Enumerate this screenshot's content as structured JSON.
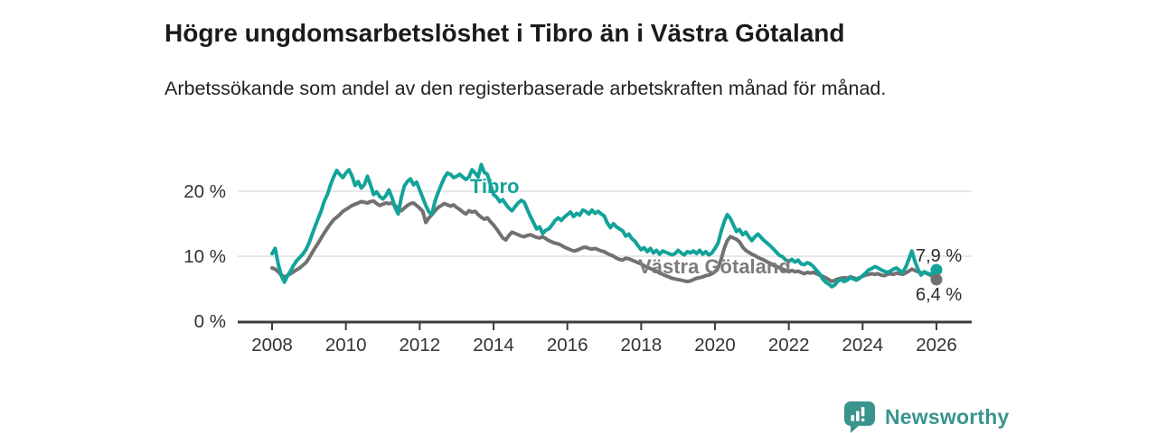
{
  "header": {
    "title": "Högre ungdomsarbetslöshet i Tibro än i Västra Götaland",
    "subtitle": "Arbetssökande som andel av den registerbaserade arbetskraften månad för månad."
  },
  "branding": {
    "logo_text": "Newsworthy",
    "logo_icon": "bar-chart-speech-bubble-icon",
    "logo_color": "#3a948e"
  },
  "colors": {
    "tibro_teal": "#12a39a",
    "vastra_gray": "#717171",
    "vastra_label_gray": "#7b7b7b",
    "grid": "#e0e0e0",
    "axis": "#3d3d3d",
    "axis_text": "#333333",
    "value_label_text": "#2b2b2b"
  },
  "chart_data": {
    "type": "line",
    "title": "Högre ungdomsarbetslöshet i Tibro än i Västra Götaland",
    "subtitle": "Arbetssökande som andel av den registerbaserade arbetskraften månad för månad.",
    "unit": "%",
    "grid": "horizontal-only",
    "x_start_year": 2008,
    "points_per_year": 12,
    "x_axis": {
      "ticks": [
        2008,
        2010,
        2012,
        2014,
        2016,
        2018,
        2020,
        2022,
        2024,
        2026
      ]
    },
    "y_axis": {
      "ticks": [
        0,
        10,
        20
      ],
      "tick_suffix": " %",
      "range": [
        0,
        25
      ]
    },
    "series": [
      {
        "name": "Tibro",
        "color": "#12a39a",
        "end_value": 7.9,
        "end_label": "7,9 %",
        "inline_label": {
          "text": "Tibro",
          "x_year": 2013.36,
          "y_value": 20.7
        },
        "values": [
          10.4,
          11.2,
          8.8,
          7.0,
          6.0,
          7.0,
          7.7,
          8.6,
          9.3,
          9.8,
          10.3,
          11.0,
          12.0,
          13.3,
          14.6,
          15.8,
          17.0,
          18.5,
          19.5,
          21.0,
          22.2,
          23.2,
          22.6,
          22.1,
          22.8,
          23.3,
          22.3,
          20.9,
          21.5,
          20.5,
          21.0,
          22.3,
          21.0,
          19.5,
          19.9,
          19.2,
          18.8,
          19.3,
          20.2,
          19.0,
          17.5,
          16.5,
          19.0,
          20.8,
          21.5,
          21.9,
          21.0,
          21.4,
          20.2,
          19.0,
          17.8,
          16.8,
          16.5,
          18.5,
          19.8,
          21.0,
          22.1,
          22.8,
          22.6,
          22.1,
          22.3,
          22.6,
          22.2,
          21.8,
          22.2,
          23.3,
          22.8,
          22.2,
          24.1,
          22.9,
          22.6,
          21.0,
          19.5,
          19.1,
          18.4,
          18.7,
          18.0,
          17.4,
          17.0,
          17.6,
          18.2,
          18.6,
          18.3,
          17.2,
          16.1,
          15.2,
          14.2,
          14.5,
          13.5,
          14.0,
          14.2,
          14.8,
          15.5,
          15.9,
          15.5,
          16.0,
          16.4,
          16.8,
          16.1,
          16.6,
          16.3,
          17.1,
          16.9,
          16.5,
          17.1,
          16.6,
          16.9,
          16.5,
          16.2,
          15.1,
          14.4,
          15.0,
          14.5,
          14.2,
          13.9,
          13.1,
          13.4,
          12.7,
          12.3,
          11.6,
          11.0,
          11.3,
          10.7,
          11.2,
          10.5,
          10.9,
          10.3,
          10.8,
          10.6,
          10.4,
          10.2,
          10.4,
          10.9,
          10.5,
          10.2,
          10.7,
          10.5,
          10.8,
          10.4,
          10.9,
          10.3,
          10.7,
          10.2,
          10.5,
          11.2,
          12.0,
          13.8,
          15.3,
          16.4,
          15.8,
          14.8,
          13.8,
          14.1,
          13.3,
          13.7,
          13.0,
          12.4,
          13.0,
          13.4,
          12.9,
          12.4,
          12.0,
          11.6,
          11.1,
          10.6,
          10.1,
          9.9,
          9.4,
          9.2,
          9.5,
          9.1,
          9.4,
          8.8,
          8.7,
          9.0,
          8.8,
          8.4,
          7.8,
          7.3,
          6.5,
          6.0,
          5.7,
          5.3,
          5.6,
          6.2,
          6.4,
          6.1,
          6.3,
          6.7,
          6.5,
          6.3,
          6.6,
          7.0,
          7.4,
          7.9,
          8.1,
          8.4,
          8.2,
          7.9,
          7.7,
          7.5,
          7.7,
          8.0,
          8.2,
          7.8,
          7.5,
          8.3,
          9.5,
          10.8,
          9.2,
          8.0,
          7.1,
          7.6,
          7.4,
          7.2,
          7.5,
          7.9
        ]
      },
      {
        "name": "Västra Götaland",
        "color": "#717171",
        "end_value": 6.4,
        "end_label": "6,4 %",
        "inline_label": {
          "text": "Västra Götaland",
          "x_year": 2017.92,
          "y_value": 8.3
        },
        "values": [
          8.2,
          8.0,
          7.6,
          7.1,
          6.8,
          7.0,
          7.3,
          7.6,
          7.9,
          8.2,
          8.6,
          9.0,
          9.7,
          10.5,
          11.3,
          12.0,
          12.8,
          13.6,
          14.3,
          15.0,
          15.6,
          16.0,
          16.4,
          16.9,
          17.2,
          17.5,
          17.8,
          18.0,
          18.2,
          18.4,
          18.3,
          18.2,
          18.4,
          18.5,
          18.1,
          17.8,
          18.0,
          18.2,
          18.1,
          18.2,
          17.8,
          17.3,
          17.0,
          17.4,
          17.8,
          18.1,
          18.2,
          17.8,
          17.4,
          16.9,
          15.2,
          15.9,
          16.4,
          17.0,
          17.5,
          17.8,
          18.1,
          17.9,
          17.7,
          17.9,
          17.5,
          17.2,
          16.8,
          16.5,
          17.0,
          16.8,
          16.9,
          16.4,
          16.0,
          15.7,
          15.9,
          15.3,
          14.8,
          14.2,
          13.5,
          12.8,
          12.5,
          13.2,
          13.7,
          13.5,
          13.3,
          13.1,
          13.0,
          13.2,
          13.3,
          13.1,
          12.9,
          12.8,
          13.0,
          12.7,
          12.4,
          12.2,
          12.0,
          11.9,
          11.7,
          11.4,
          11.2,
          11.0,
          10.8,
          10.9,
          11.1,
          11.3,
          11.4,
          11.2,
          11.1,
          11.2,
          11.0,
          10.8,
          10.7,
          10.4,
          10.2,
          10.0,
          9.7,
          9.5,
          9.4,
          9.7,
          9.6,
          9.4,
          9.2,
          9.0,
          8.8,
          8.5,
          8.3,
          8.1,
          7.9,
          7.7,
          7.4,
          7.2,
          7.0,
          6.8,
          6.6,
          6.5,
          6.4,
          6.3,
          6.2,
          6.1,
          6.2,
          6.4,
          6.6,
          6.7,
          6.8,
          7.0,
          7.1,
          7.3,
          7.6,
          8.2,
          9.5,
          11.2,
          12.4,
          13.0,
          12.8,
          12.6,
          12.2,
          11.4,
          10.9,
          10.6,
          10.3,
          10.1,
          9.8,
          9.6,
          9.4,
          9.1,
          8.9,
          8.6,
          8.4,
          8.2,
          8.0,
          7.8,
          7.6,
          7.8,
          7.6,
          7.7,
          7.5,
          7.3,
          7.5,
          7.4,
          7.5,
          7.3,
          7.1,
          6.9,
          6.7,
          6.4,
          6.1,
          6.3,
          6.5,
          6.6,
          6.7,
          6.6,
          6.8,
          6.7,
          6.5,
          6.7,
          6.9,
          7.1,
          7.2,
          7.3,
          7.2,
          7.3,
          7.1,
          7.0,
          7.2,
          7.3,
          7.2,
          7.4,
          7.3,
          7.2,
          7.4,
          7.7,
          8.0,
          7.8,
          7.6,
          7.4,
          7.5,
          7.3,
          7.1,
          6.8,
          6.4
        ]
      }
    ]
  }
}
